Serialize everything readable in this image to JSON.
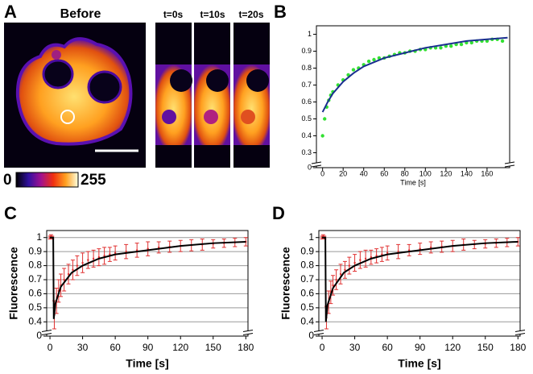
{
  "figure": {
    "panel_labels": [
      "A",
      "B",
      "C",
      "D"
    ],
    "image_title": "Before",
    "timepoints": [
      "t=0s",
      "t=10s",
      "t=20s"
    ],
    "colorbar": {
      "ticks": [
        0,
        255
      ]
    }
  },
  "chart_data": [
    {
      "type": "scatter",
      "xlabel": "Time [s]",
      "xlim": [
        -6,
        182
      ],
      "ylim": [
        0.25,
        1.05
      ],
      "xticks": [
        0,
        20,
        40,
        60,
        80,
        100,
        120,
        140,
        160
      ],
      "yticks": [
        0,
        0.3,
        0.4,
        0.5,
        0.6,
        0.7,
        0.8,
        0.9,
        1
      ],
      "grid": false,
      "axis_break": true,
      "series": [
        {
          "type": "scatter",
          "color": "#33e033",
          "x": [
            0,
            2,
            4,
            6,
            8,
            10,
            15,
            20,
            25,
            30,
            35,
            40,
            45,
            50,
            55,
            60,
            65,
            70,
            75,
            80,
            85,
            90,
            95,
            100,
            105,
            110,
            115,
            120,
            125,
            130,
            135,
            140,
            145,
            150,
            155,
            160,
            165,
            170,
            175
          ],
          "values": [
            0.4,
            0.5,
            0.57,
            0.61,
            0.64,
            0.66,
            0.7,
            0.73,
            0.76,
            0.79,
            0.8,
            0.82,
            0.84,
            0.85,
            0.86,
            0.86,
            0.87,
            0.88,
            0.89,
            0.89,
            0.9,
            0.9,
            0.91,
            0.91,
            0.92,
            0.92,
            0.92,
            0.93,
            0.93,
            0.94,
            0.94,
            0.95,
            0.95,
            0.96,
            0.96,
            0.96,
            0.97,
            0.97,
            0.96
          ]
        },
        {
          "type": "line",
          "color": "#1a2f8f",
          "x": [
            0,
            5,
            10,
            20,
            30,
            40,
            60,
            80,
            100,
            120,
            140,
            160,
            180
          ],
          "values": [
            0.54,
            0.6,
            0.65,
            0.72,
            0.77,
            0.81,
            0.86,
            0.89,
            0.92,
            0.94,
            0.96,
            0.97,
            0.98
          ]
        }
      ]
    },
    {
      "type": "line",
      "xlabel": "Time [s]",
      "ylabel": "Fluorescence",
      "xlim": [
        -3,
        182
      ],
      "ylim": [
        0.35,
        1.05
      ],
      "xticks": [
        0,
        30,
        60,
        90,
        120,
        150,
        180
      ],
      "yticks": [
        0,
        0.4,
        0.5,
        0.6,
        0.7,
        0.8,
        0.9,
        1
      ],
      "grid": true,
      "axis_break": true,
      "series": [
        {
          "type": "errorbar",
          "color": "#e03030",
          "x": [
            0,
            1,
            2,
            4,
            6,
            8,
            10,
            13,
            17,
            21,
            25,
            30,
            35,
            40,
            45,
            50,
            55,
            60,
            70,
            80,
            90,
            100,
            110,
            120,
            130,
            140,
            150,
            160,
            170,
            180
          ],
          "values": [
            1.0,
            1.01,
            1.0,
            0.45,
            0.55,
            0.62,
            0.66,
            0.7,
            0.74,
            0.77,
            0.8,
            0.82,
            0.84,
            0.85,
            0.86,
            0.87,
            0.88,
            0.89,
            0.9,
            0.91,
            0.92,
            0.93,
            0.935,
            0.94,
            0.945,
            0.95,
            0.955,
            0.96,
            0.965,
            0.97
          ],
          "errors": [
            0.01,
            0.01,
            0.01,
            0.1,
            0.09,
            0.08,
            0.08,
            0.08,
            0.07,
            0.07,
            0.07,
            0.07,
            0.06,
            0.06,
            0.06,
            0.06,
            0.05,
            0.05,
            0.05,
            0.05,
            0.05,
            0.04,
            0.04,
            0.04,
            0.04,
            0.04,
            0.03,
            0.03,
            0.03,
            0.03
          ]
        },
        {
          "type": "line",
          "color": "#000000",
          "x": [
            0,
            3,
            3.5,
            5,
            10,
            20,
            30,
            45,
            60,
            90,
            120,
            150,
            180
          ],
          "values": [
            1.0,
            1.0,
            0.42,
            0.53,
            0.65,
            0.75,
            0.8,
            0.85,
            0.88,
            0.91,
            0.94,
            0.96,
            0.97
          ]
        }
      ]
    },
    {
      "type": "line",
      "xlabel": "Time [s]",
      "ylabel": "Fluorescence",
      "xlim": [
        -3,
        182
      ],
      "ylim": [
        0.35,
        1.05
      ],
      "xticks": [
        0,
        30,
        60,
        90,
        120,
        150,
        180
      ],
      "yticks": [
        0,
        0.4,
        0.5,
        0.6,
        0.7,
        0.8,
        0.9,
        1
      ],
      "grid": true,
      "axis_break": true,
      "series": [
        {
          "type": "errorbar",
          "color": "#e03030",
          "x": [
            0,
            1,
            2,
            4,
            6,
            8,
            10,
            13,
            17,
            21,
            25,
            30,
            35,
            40,
            45,
            50,
            55,
            60,
            70,
            80,
            90,
            100,
            110,
            120,
            130,
            140,
            150,
            160,
            170,
            180
          ],
          "values": [
            1.0,
            1.01,
            1.0,
            0.43,
            0.54,
            0.61,
            0.66,
            0.7,
            0.74,
            0.77,
            0.8,
            0.82,
            0.84,
            0.85,
            0.86,
            0.87,
            0.88,
            0.89,
            0.9,
            0.91,
            0.92,
            0.93,
            0.935,
            0.94,
            0.95,
            0.95,
            0.955,
            0.96,
            0.965,
            0.97
          ],
          "errors": [
            0.01,
            0.01,
            0.01,
            0.08,
            0.08,
            0.08,
            0.07,
            0.07,
            0.07,
            0.06,
            0.06,
            0.06,
            0.06,
            0.06,
            0.05,
            0.05,
            0.05,
            0.05,
            0.05,
            0.04,
            0.04,
            0.04,
            0.04,
            0.04,
            0.04,
            0.03,
            0.03,
            0.03,
            0.03,
            0.03
          ]
        },
        {
          "type": "line",
          "color": "#000000",
          "x": [
            0,
            3,
            3.5,
            5,
            10,
            20,
            30,
            45,
            60,
            90,
            120,
            150,
            180
          ],
          "values": [
            1.0,
            1.0,
            0.4,
            0.52,
            0.64,
            0.75,
            0.8,
            0.85,
            0.88,
            0.91,
            0.94,
            0.96,
            0.97
          ]
        }
      ]
    }
  ]
}
